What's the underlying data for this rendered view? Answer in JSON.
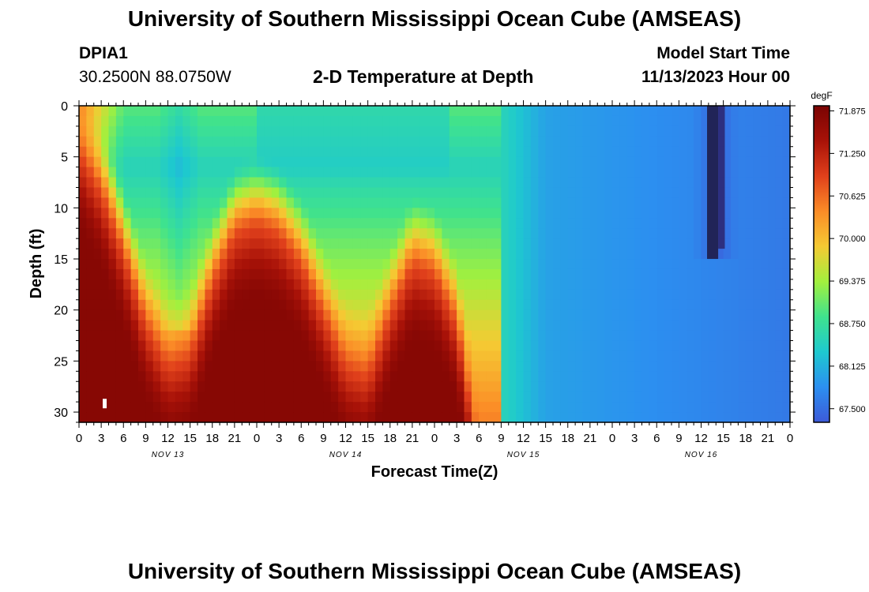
{
  "header": {
    "title": "University of Southern Mississippi Ocean Cube (AMSEAS)",
    "station_id": "DPIA1",
    "station_coords": "30.2500N  88.0750W",
    "chart_title": "2-D Temperature at Depth",
    "model_start_label": "Model Start Time",
    "model_start_value": "11/13/2023 Hour 00"
  },
  "footer": {
    "title": "University of Southern Mississippi Ocean Cube (AMSEAS)"
  },
  "colors": {
    "scale": [
      "#3d5ad8",
      "#2c8ff0",
      "#1ec9cf",
      "#3fe28e",
      "#a2f03e",
      "#f5ca33",
      "#fb8c27",
      "#e0401b",
      "#a81208",
      "#7a0403"
    ]
  },
  "chart_data": {
    "type": "heatmap",
    "title": "2-D Temperature at Depth",
    "xlabel": "Forecast Time(Z)",
    "ylabel": "Depth (ft)",
    "x_range_hours": [
      0,
      96
    ],
    "ylim": [
      0,
      31
    ],
    "x_tick_labels": [
      "0",
      "3",
      "6",
      "9",
      "12",
      "15",
      "18",
      "21",
      "0",
      "3",
      "6",
      "9",
      "12",
      "15",
      "18",
      "21",
      "0",
      "3",
      "6",
      "9",
      "12",
      "15",
      "18",
      "21",
      "0",
      "3",
      "6",
      "9",
      "12",
      "15",
      "18",
      "21",
      "0"
    ],
    "x_day_labels": [
      {
        "label": "NOV 13",
        "hour": 12
      },
      {
        "label": "NOV 14",
        "hour": 36
      },
      {
        "label": "NOV 15",
        "hour": 60
      },
      {
        "label": "NOV 16",
        "hour": 84
      }
    ],
    "y_ticks": [
      0,
      5,
      10,
      15,
      20,
      25,
      30
    ],
    "colorbar": {
      "unit": "degF",
      "min": 67.3,
      "max": 71.95,
      "tick_values": [
        71.875,
        71.25,
        70.625,
        70.0,
        69.375,
        68.75,
        68.125,
        67.5
      ],
      "tick_labels": [
        "71.875",
        "71.250",
        "70.625",
        "70.000",
        "69.375",
        "68.750",
        "68.125",
        "67.500"
      ]
    },
    "thermocline_depth_ft": [
      {
        "hour": 0,
        "depth": 0
      },
      {
        "hour": 3,
        "depth": 4
      },
      {
        "hour": 6,
        "depth": 10
      },
      {
        "hour": 9,
        "depth": 17
      },
      {
        "hour": 12,
        "depth": 21
      },
      {
        "hour": 15,
        "depth": 20
      },
      {
        "hour": 18,
        "depth": 13
      },
      {
        "hour": 21,
        "depth": 8
      },
      {
        "hour": 24,
        "depth": 7
      },
      {
        "hour": 27,
        "depth": 8
      },
      {
        "hour": 30,
        "depth": 11
      },
      {
        "hour": 33,
        "depth": 16
      },
      {
        "hour": 36,
        "depth": 21
      },
      {
        "hour": 39,
        "depth": 22
      },
      {
        "hour": 42,
        "depth": 16
      },
      {
        "hour": 45,
        "depth": 11
      },
      {
        "hour": 48,
        "depth": 12
      },
      {
        "hour": 51,
        "depth": 17
      },
      {
        "hour": 54,
        "depth": 30
      },
      {
        "hour": 55,
        "depth": 31
      }
    ],
    "surface_cool_pocket": {
      "hour_start": 24,
      "hour_end": 50,
      "depth_max": 8
    },
    "cold_plumes": [
      {
        "hour_center": 13.5,
        "depth_max": 22
      },
      {
        "hour_center": 86,
        "depth_max": 15
      }
    ],
    "temperature_regimes": [
      {
        "hours": [
          0,
          9
        ],
        "range_degF": [
          68.3,
          71.9
        ]
      },
      {
        "hours": [
          9,
          57
        ],
        "range_degF": [
          68.1,
          71.8
        ]
      },
      {
        "hours": [
          57,
          96
        ],
        "range_degF": [
          67.4,
          68.2
        ]
      }
    ]
  }
}
